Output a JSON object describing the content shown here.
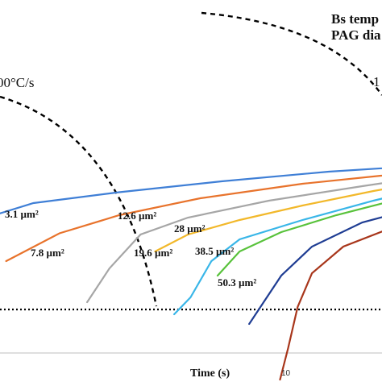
{
  "chart_data": {
    "type": "line",
    "xscale": "log",
    "xlabel": "Time (s)",
    "x_tick_labels": [
      "10"
    ],
    "legend_lines": [
      "Bs temp",
      "PAG dia"
    ],
    "cooling_rate_labels": [
      {
        "id": "fast",
        "text": "00°C/s"
      },
      {
        "id": "slow",
        "text": "1"
      }
    ],
    "series": [
      {
        "name": "",
        "color": "#3f7fd6",
        "points": [
          [
            0.5,
            0.0
          ],
          [
            0.75,
            0.2
          ],
          [
            1.2,
            0.34
          ],
          [
            2.5,
            0.43
          ],
          [
            6,
            0.52
          ],
          [
            15,
            0.6
          ],
          [
            40,
            0.66
          ]
        ]
      },
      {
        "name": "3.1 µm²",
        "color": "#e8732c",
        "points": [
          [
            0.95,
            -0.14
          ],
          [
            1.5,
            0.09
          ],
          [
            2.5,
            0.24
          ],
          [
            5,
            0.38
          ],
          [
            12,
            0.5
          ],
          [
            40,
            0.62
          ]
        ]
      },
      {
        "name": "7.8 µm²",
        "color": "#a6a6a6",
        "points": [
          [
            1.9,
            -0.48
          ],
          [
            2.3,
            -0.2
          ],
          [
            3,
            0.08
          ],
          [
            4.5,
            0.22
          ],
          [
            9,
            0.36
          ],
          [
            20,
            0.48
          ],
          [
            40,
            0.58
          ]
        ]
      },
      {
        "name": "12.6 µm²",
        "color": "#f2b82a",
        "points": [
          [
            3.4,
            -0.06
          ],
          [
            4.5,
            0.08
          ],
          [
            7,
            0.2
          ],
          [
            12,
            0.32
          ],
          [
            22,
            0.44
          ],
          [
            40,
            0.54
          ]
        ]
      },
      {
        "name": "19.6 µm²",
        "color": "#39b6e8",
        "points": [
          [
            4.0,
            -0.58
          ],
          [
            4.6,
            -0.44
          ],
          [
            5.5,
            -0.14
          ],
          [
            7,
            0.04
          ],
          [
            12,
            0.2
          ],
          [
            22,
            0.36
          ],
          [
            40,
            0.5
          ]
        ]
      },
      {
        "name": "28 µm²",
        "color": "#58c23b",
        "points": [
          [
            5.8,
            -0.26
          ],
          [
            7,
            -0.06
          ],
          [
            10,
            0.1
          ],
          [
            16,
            0.24
          ],
          [
            26,
            0.36
          ],
          [
            40,
            0.44
          ]
        ]
      },
      {
        "name": "38.5 µm²",
        "color": "#1f3d93",
        "points": [
          [
            7.6,
            -0.66
          ],
          [
            8.6,
            -0.48
          ],
          [
            10,
            -0.26
          ],
          [
            13,
            -0.02
          ],
          [
            20,
            0.18
          ],
          [
            32,
            0.3
          ],
          [
            40,
            0.36
          ]
        ]
      },
      {
        "name": "50.3 µm²",
        "color": "#a8361b",
        "points": [
          [
            9.9,
            -1.12
          ],
          [
            10.6,
            -0.86
          ],
          [
            11.5,
            -0.52
          ],
          [
            13,
            -0.24
          ],
          [
            17,
            -0.02
          ],
          [
            26,
            0.14
          ],
          [
            40,
            0.24
          ]
        ]
      }
    ]
  }
}
